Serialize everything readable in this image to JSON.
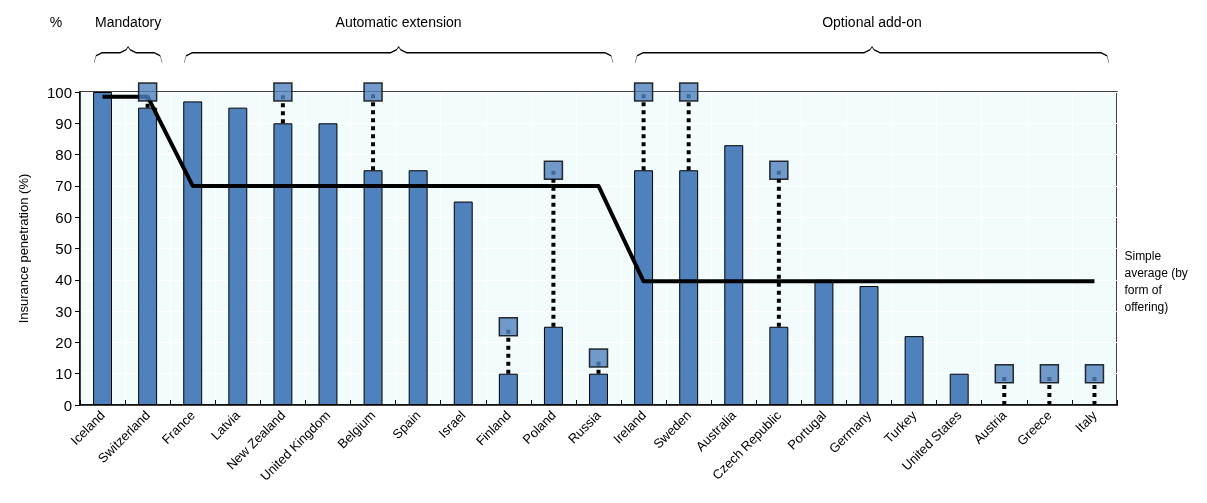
{
  "chart_data": {
    "type": "bar",
    "ylabel": "Insurance penetration (%)",
    "annotations": [
      "%",
      "Mandatory",
      "Automatic extension",
      "Optional add-on"
    ],
    "categories": [
      "Iceland",
      "Switzerland",
      "France",
      "Latvia",
      "New Zealand",
      "United Kingdom",
      "Belgium",
      "Spain",
      "Israel",
      "Finland",
      "Poland",
      "Russia",
      "Ireland",
      "Sweden",
      "Australia",
      "Czech Republic",
      "Portugal",
      "Germany",
      "Turkey",
      "United States",
      "Austria",
      "Greece",
      "Italy"
    ],
    "series": [
      {
        "color": "#4f81bd",
        "values": [
          100,
          95,
          97,
          95,
          90,
          90,
          75,
          75,
          65,
          10,
          25,
          10,
          75,
          75,
          83,
          25,
          40,
          38,
          22,
          10,
          0,
          0,
          0
        ]
      },
      {
        "type": "scatter",
        "color": "#4f81bd",
        "marker": "square",
        "values": [
          null,
          100,
          null,
          null,
          100,
          null,
          100,
          null,
          null,
          25,
          75,
          15,
          100,
          100,
          null,
          75,
          null,
          null,
          null,
          null,
          10,
          10,
          10
        ],
        "errors": [
          null,
          [
            95,
            100
          ],
          null,
          null,
          [
            90,
            100
          ],
          null,
          [
            75,
            100
          ],
          null,
          null,
          [
            10,
            25
          ],
          [
            25,
            75
          ],
          [
            10,
            15
          ],
          [
            75,
            100
          ],
          [
            75,
            100
          ],
          null,
          [
            25,
            75
          ],
          null,
          null,
          null,
          null,
          [
            0,
            10
          ],
          [
            0,
            10
          ],
          [
            0,
            10
          ]
        ]
      },
      {
        "type": "line",
        "name": "Simple average (by form of offering)",
        "color": "#000000",
        "marker": "none",
        "values": [
          98.5,
          98.5,
          70,
          70,
          70,
          70,
          70,
          70,
          70,
          70,
          70,
          70,
          39.5,
          39.5,
          39.5,
          39.5,
          39.5,
          39.5,
          39.5,
          39.5,
          39.5,
          39.5,
          39.5
        ]
      }
    ],
    "ylim": [
      0,
      100
    ],
    "yticks": [
      0,
      10,
      20,
      30,
      40,
      50,
      60,
      70,
      80,
      90,
      100
    ],
    "grid": true
  }
}
